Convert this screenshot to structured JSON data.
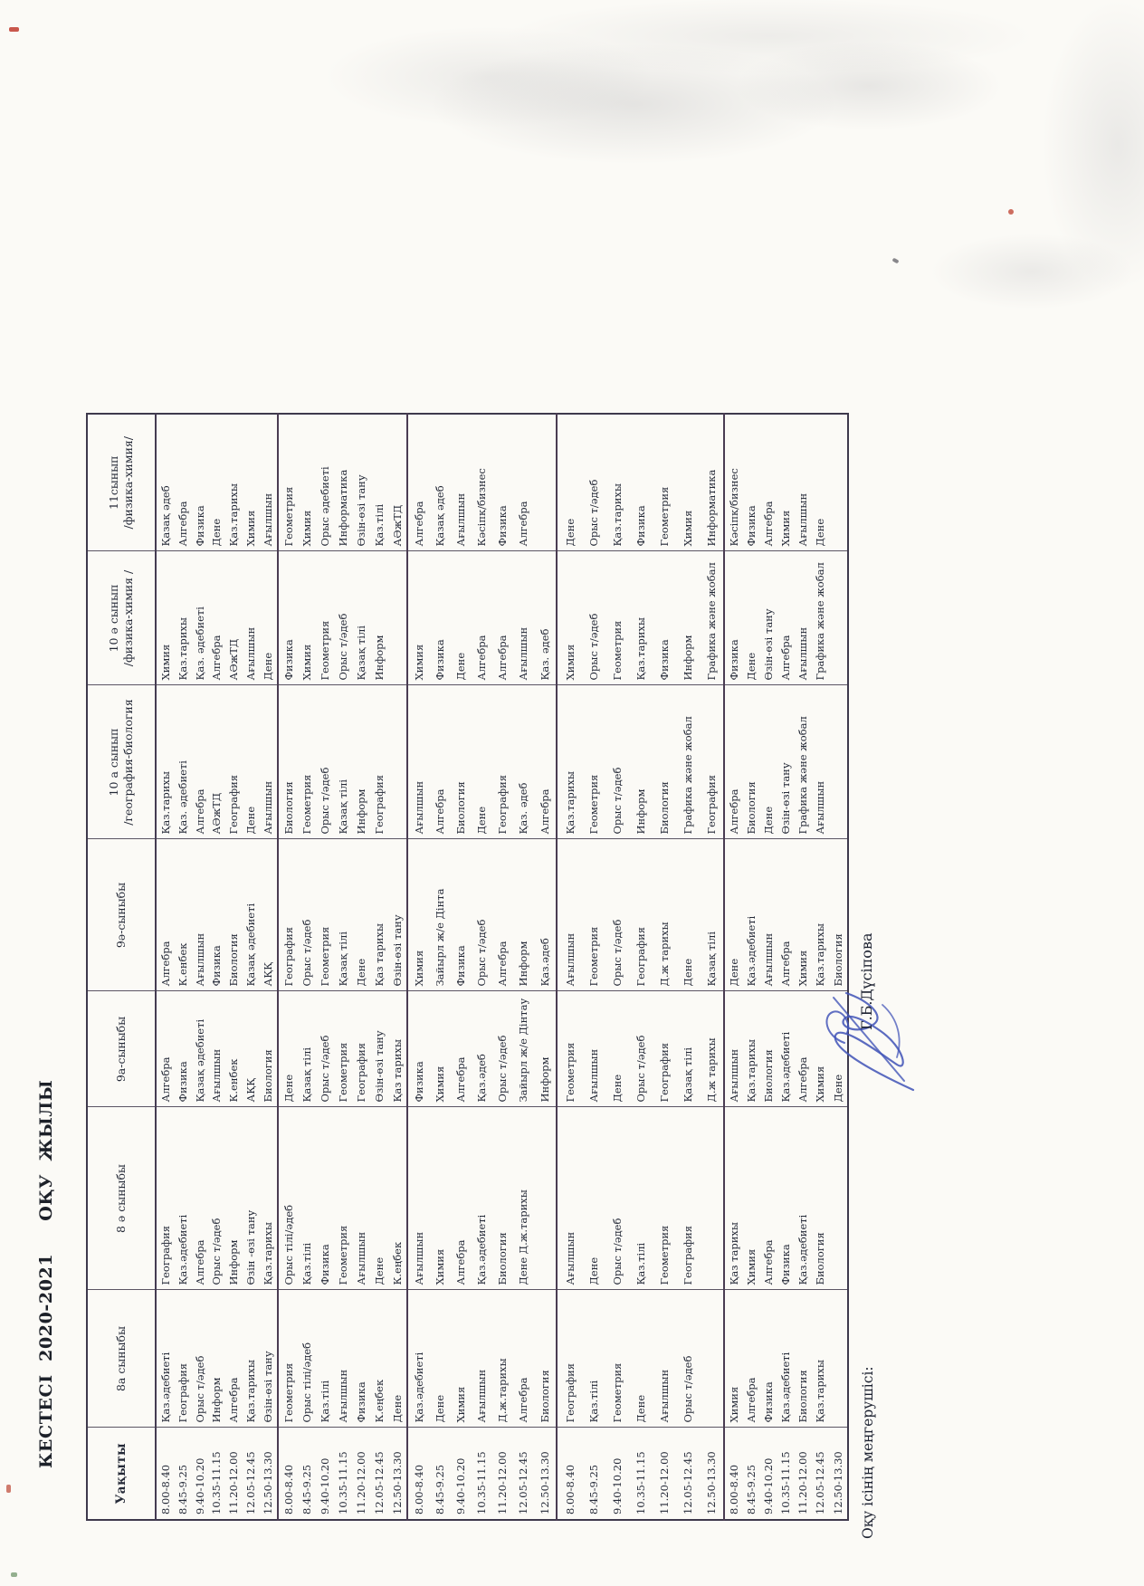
{
  "title": "КЕСТЕСІ  2020-2021     ОҚУ  ЖЫЛЫ",
  "footer": {
    "label": "Оқу ісінің меңгерушісі:",
    "signature_name": "Г.Б.Дүсіпова"
  },
  "ink_color": "#242937",
  "signature_ink_color": "#4456b8",
  "table": {
    "time_header": "Уақыты",
    "class_headers": [
      "8а сыныбы",
      "8 ә сыныбы",
      "9а-сыныбы",
      "9ә-сыныбы",
      "10 а сынып\n/география-биология",
      "10 ә сынып\n/физика-химия /",
      "11сынып\n/физика-химия/"
    ],
    "times": [
      "8.00-8.40",
      "8.45-9.25",
      "9.40-10.20",
      "10.35-11.15",
      "11.20-12.00",
      "12.05-12.45",
      "12.50-13.30"
    ],
    "blocks": [
      {
        "cols": [
          [
            "8.00-8.40",
            "8.45-9.25",
            "9.40-10.20",
            "10.35-11.15",
            "11.20-12.00",
            "12.05-12.45",
            "12.50-13.30"
          ],
          [
            "Қаз.әдебиеті",
            "География",
            "Орыс т/әдеб",
            "Информ",
            "Алгебра",
            "Қаз.тарихы",
            "Өзін-өзі тану"
          ],
          [
            "География",
            "Қаз.әдебиеті",
            "Алгебра",
            "Орыс т/әдеб",
            "Информ",
            "Өзін -өзі тану",
            "Қаз.тарихы"
          ],
          [
            "Алгебра",
            "Физика",
            "Қазақ әдебиеті",
            "Ағылшын",
            "К.енбек",
            "АҚҚ",
            "Биология"
          ],
          [
            "Алгебра",
            "К.енбек",
            "Ағылшын",
            "Физика",
            "Биология",
            "Қазақ әдебиеті",
            "АҚҚ"
          ],
          [
            "Қаз.тарихы",
            "Қаз. әдебиеті",
            "Алгебра",
            "АӘжТД",
            "География",
            "Дене",
            "Ағылшын"
          ],
          [
            "Химия",
            "Қаз.тарихы",
            "Қаз. әдебиеті",
            "Алгебра",
            "АӘжТД",
            "Ағылшын",
            "Дене"
          ],
          [
            "Қазақ әдеб",
            "Алгебра",
            "Физика",
            "Дене",
            "Қаз.тарихы",
            "Химия",
            "Ағылшын"
          ]
        ]
      },
      {
        "cols": [
          [
            "8.00-8.40",
            "8.45-9.25",
            "9.40-10.20",
            "10.35-11.15",
            "11.20-12.00",
            "12.05-12.45",
            "12.50-13.30"
          ],
          [
            "Геометрия",
            "Орыс тілі/әдеб",
            "Қаз.тілі",
            "Ағылшын",
            "Физика",
            "К.еңбек",
            "Дене"
          ],
          [
            "Орыс тілі/әдеб",
            "Қаз.тілі",
            "Физика",
            "Геометрия",
            "Ағылшын",
            "Дене",
            "К.еңбек"
          ],
          [
            "Дене",
            "Қазақ тілі",
            "Орыс т/әдеб",
            "Геометрия",
            "География",
            "Өзін-өзі тану",
            "Қаз тарихы"
          ],
          [
            "География",
            "Орыс т/әдеб",
            "Геометрия",
            "Қазақ тілі",
            "Дене",
            "Қаз тарихы",
            "Өзін-өзі тану"
          ],
          [
            "Биология",
            "Геометрия",
            "Орыс т/әдеб",
            "Қазақ тілі",
            "Информ",
            "География",
            ""
          ],
          [
            "Физика",
            "Химия",
            "Геометрия",
            "Орыс т/әдеб",
            "Қазақ тілі",
            "Информ",
            ""
          ],
          [
            "Геометрия",
            "Химия",
            "Орыс әдебиеті",
            "Информатика",
            "Өзін-өзі тану",
            "Қаз.тілі",
            "АӘжТД"
          ]
        ]
      },
      {
        "cols": [
          [
            "8.00-8.40",
            "8.45-9.25",
            "9.40-10.20",
            "10.35-11.15",
            "11.20-12.00",
            "12.05-12.45",
            "12.50-13.30"
          ],
          [
            "Қаз.әдебиеті",
            "Дене",
            "Химия",
            "Ағылшын",
            "Д.ж.тарихы",
            "Алгебра",
            "Биология"
          ],
          [
            "Ағылшын",
            "Химия",
            "Алгебра",
            "Қаз.әдебиеті",
            "Биология",
            "Дене Д.ж.тарихы",
            ""
          ],
          [
            "Физика",
            "Химия",
            "Алгебра",
            "Қаз.әдеб",
            "Орыс т/әдеб",
            "Зайырл ж/е Дінтау",
            "Информ"
          ],
          [
            "Химия",
            "Зайырл ж/е Дінта",
            "Физика",
            "Орыс т/әдеб",
            "Алгебра",
            "Информ",
            "Қаз.әдеб"
          ],
          [
            "Ағылшын",
            "Алгебра",
            "Биология",
            "Дене",
            "География",
            "Қаз. әдеб",
            "Алгебра"
          ],
          [
            "Химия",
            "Физика",
            "Дене",
            "Алгебра",
            "Алгебра",
            "Ағылшын",
            "Қаз. әдеб"
          ],
          [
            "Алгебра",
            "Қазақ әдеб",
            "Ағылшын",
            "Кәсіпк/бизнес",
            "Физика",
            "Алгебра",
            ""
          ]
        ]
      },
      {
        "cols": [
          [
            "8.00-8.40",
            "8.45-9.25",
            "9.40-10.20",
            "10.35-11.15",
            "11.20-12.00",
            "12.05-12.45",
            "12.50-13.30"
          ],
          [
            "География",
            "Қаз.тілі",
            "Геометрия",
            "Дене",
            "Ағылшын",
            "Орыс т/әдеб",
            ""
          ],
          [
            "Ағылшын",
            "Дене",
            "Орыс т/әдеб",
            "Қаз.тілі",
            "Геометрия",
            "География",
            ""
          ],
          [
            "Геометрия",
            "Ағылшын",
            "Дене",
            "Орыс т/әдеб",
            "География",
            "Қазақ тілі",
            "Д.ж тарихы"
          ],
          [
            "Ағылшын",
            "Геометрия",
            "Орыс т/әдеб",
            "География",
            "Д.ж тарихы",
            "Дене",
            "Қазақ тілі"
          ],
          [
            "Қаз.тарихы",
            "Геометрия",
            "Орыс т/әдеб",
            "Информ",
            "Биология",
            "Графика және жобал",
            "География"
          ],
          [
            "Химия",
            "Орыс т/әдеб",
            "Геометрия",
            "Қаз.тарихы",
            "Физика",
            "Информ",
            "Графика және жобал"
          ],
          [
            "Дене",
            "Орыс т/әдеб",
            "Қаз.тарихы",
            "Физика",
            "Геометрия",
            "Химия",
            "Информатика"
          ]
        ]
      },
      {
        "cols": [
          [
            "8.00-8.40",
            "8.45-9.25",
            "9.40-10.20",
            "10.35-11.15",
            "11.20-12.00",
            "12.05-12.45",
            "12.50-13.30"
          ],
          [
            "Химия",
            "Алгебра",
            "Физика",
            "Қаз.әдебиеті",
            "Биология",
            "Қаз.тарихы",
            ""
          ],
          [
            "Қаз тарихы",
            "Химия",
            "Алгебра",
            "Физика",
            "Қаз.әдебиеті",
            "Биология",
            ""
          ],
          [
            "Ағылшын",
            "Қаз.тарихы",
            "Биология",
            "Қаз.әдебиеті",
            "Алгебра",
            "Химия",
            "Дене"
          ],
          [
            "Дене",
            "Қаз.әдебиеті",
            "Ағылшын",
            "Алгебра",
            "Химия",
            "Қаз.тарихы",
            "Биология"
          ],
          [
            "Алгебра",
            "Биология",
            "Дене",
            "Өзін-өзі тану",
            "Графика және жобал",
            "Ағылшын",
            ""
          ],
          [
            "Физика",
            "Дене",
            "Өзін-өзі тану",
            "Алгебра",
            "Ағылшын",
            "Графика және жобал",
            ""
          ],
          [
            "Кәсіпк/бизнес",
            "Физика",
            "Алгебра",
            "Химия",
            "Ағылшын",
            "Дене",
            ""
          ]
        ]
      }
    ]
  }
}
